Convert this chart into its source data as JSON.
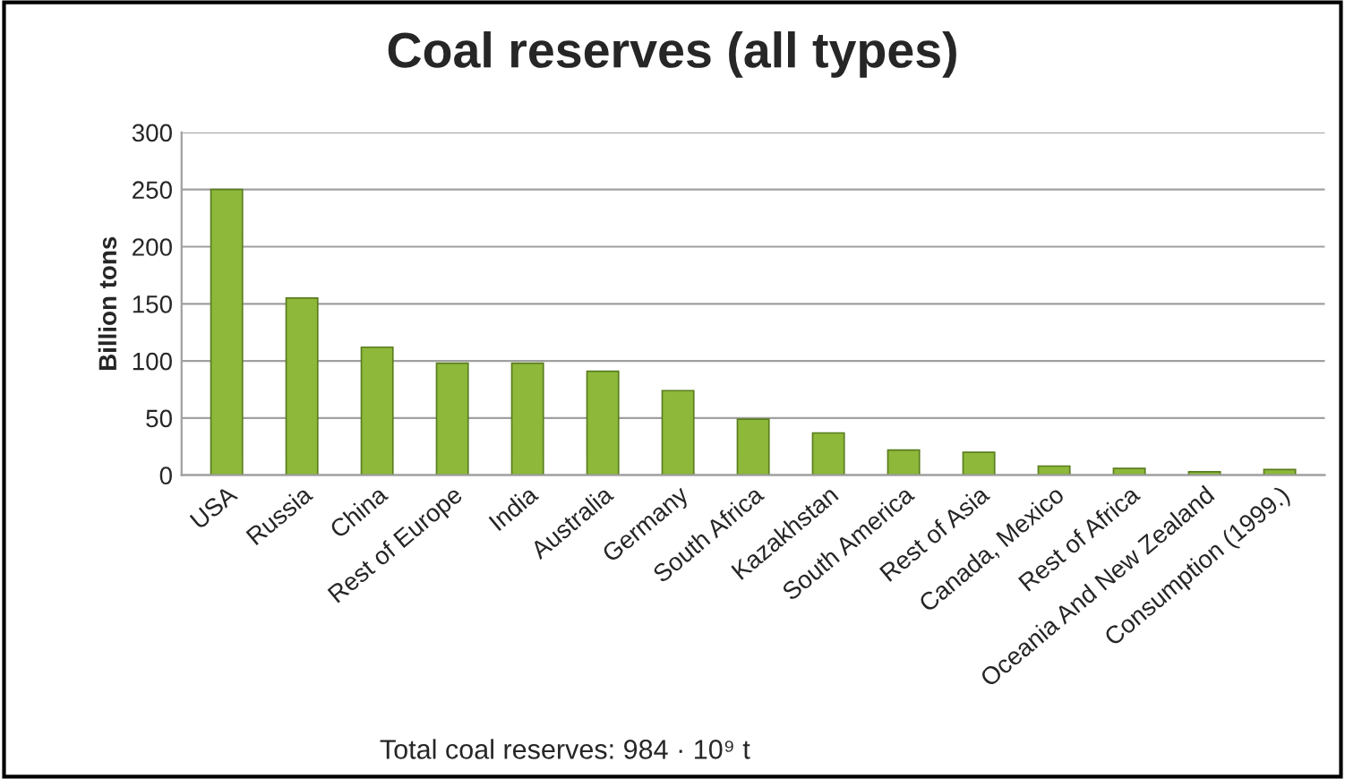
{
  "chart_data": {
    "type": "bar",
    "title": "Coal reserves (all types)",
    "ylabel": "Billion tons",
    "categories": [
      "USA",
      "Russia",
      "China",
      "Rest of Europe",
      "India",
      "Australia",
      "Germany",
      "South Africa",
      "Kazakhstan",
      "South America",
      "Rest of Asia",
      "Canada, Mexico",
      "Rest of Africa",
      "Oceania And New Zealand",
      "Consumption (1999.)"
    ],
    "values": [
      250,
      155,
      112,
      98,
      98,
      91,
      74,
      49,
      37,
      22,
      20,
      8,
      6,
      3,
      5
    ],
    "color": "#8db83a",
    "ylim": [
      0,
      300
    ],
    "yticks": [
      0,
      50,
      100,
      150,
      200,
      250,
      300
    ],
    "grid": "y",
    "annotations": [
      "Total coal reserves: 984 · 10⁹ t"
    ]
  }
}
